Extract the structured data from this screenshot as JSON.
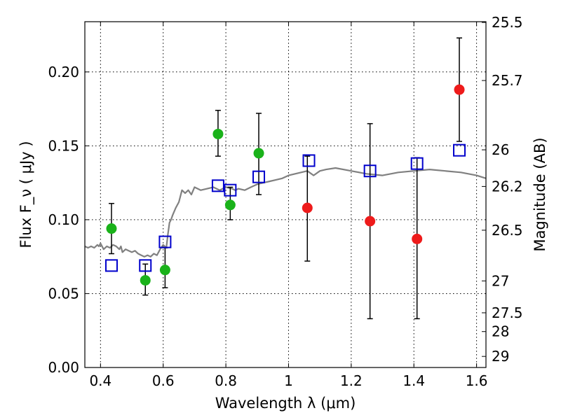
{
  "chart_data": {
    "type": "scatter",
    "title": "",
    "xlabel": "Wavelength  λ (μm)",
    "ylabel": "Flux  F_ν  ( μJy )",
    "ylabel_right": "Magnitude (AB)",
    "xlim": [
      0.35,
      1.63
    ],
    "ylim": [
      0.0,
      0.234
    ],
    "grid": true,
    "x_ticks": [
      0.4,
      0.6,
      0.8,
      1.0,
      1.2,
      1.4,
      1.6
    ],
    "x_tick_labels": [
      "0.4",
      "0.6",
      "0.8",
      "1",
      "1.2",
      "1.4",
      "1.6"
    ],
    "y_ticks": [
      0.0,
      0.05,
      0.1,
      0.15,
      0.2
    ],
    "y_tick_labels": [
      "0.00",
      "0.05",
      "0.10",
      "0.15",
      "0.20"
    ],
    "right_ticks": [
      {
        "label": "25.5",
        "flux": 0.2335
      },
      {
        "label": "25.7",
        "flux": 0.1942
      },
      {
        "label": "26",
        "flux": 0.1473
      },
      {
        "label": "26.2",
        "flux": 0.1225
      },
      {
        "label": "26.5",
        "flux": 0.0929
      },
      {
        "label": "27",
        "flux": 0.0586
      },
      {
        "label": "27.5",
        "flux": 0.037
      },
      {
        "label": "28",
        "flux": 0.0243
      },
      {
        "label": "29",
        "flux": 0.0075
      }
    ],
    "colors": {
      "model": "#808080",
      "detected": "#1ab21a",
      "nir": "#ee1b1b",
      "model_phot": "#0000cc",
      "errorbar": "#000000"
    },
    "series": [
      {
        "kind": "line",
        "color": "#808080",
        "x": [
          0.35,
          0.36,
          0.37,
          0.38,
          0.39,
          0.395,
          0.4,
          0.41,
          0.42,
          0.43,
          0.44,
          0.45,
          0.46,
          0.465,
          0.47,
          0.48,
          0.49,
          0.5,
          0.51,
          0.52,
          0.53,
          0.54,
          0.55,
          0.56,
          0.57,
          0.58,
          0.59,
          0.6,
          0.61,
          0.615,
          0.62,
          0.625,
          0.63,
          0.64,
          0.65,
          0.655,
          0.66,
          0.67,
          0.68,
          0.69,
          0.7,
          0.72,
          0.74,
          0.76,
          0.78,
          0.8,
          0.82,
          0.83,
          0.84,
          0.86,
          0.88,
          0.9,
          0.92,
          0.94,
          0.96,
          0.98,
          1.0,
          1.02,
          1.04,
          1.06,
          1.08,
          1.1,
          1.12,
          1.15,
          1.2,
          1.25,
          1.3,
          1.35,
          1.4,
          1.45,
          1.5,
          1.55,
          1.6,
          1.63
        ],
        "y": [
          0.082,
          0.081,
          0.082,
          0.081,
          0.083,
          0.082,
          0.084,
          0.08,
          0.082,
          0.081,
          0.083,
          0.082,
          0.08,
          0.082,
          0.078,
          0.08,
          0.079,
          0.078,
          0.079,
          0.077,
          0.076,
          0.075,
          0.076,
          0.075,
          0.077,
          0.076,
          0.08,
          0.083,
          0.081,
          0.09,
          0.098,
          0.1,
          0.103,
          0.108,
          0.112,
          0.116,
          0.12,
          0.118,
          0.12,
          0.117,
          0.122,
          0.12,
          0.121,
          0.122,
          0.12,
          0.122,
          0.121,
          0.12,
          0.121,
          0.12,
          0.122,
          0.124,
          0.125,
          0.126,
          0.127,
          0.128,
          0.13,
          0.131,
          0.132,
          0.133,
          0.13,
          0.133,
          0.134,
          0.135,
          0.133,
          0.131,
          0.13,
          0.132,
          0.133,
          0.134,
          0.133,
          0.132,
          0.13,
          0.128
        ]
      },
      {
        "kind": "points",
        "color": "#1ab21a",
        "x": [
          0.435,
          0.543,
          0.606,
          0.775,
          0.814,
          0.905
        ],
        "y": [
          0.094,
          0.059,
          0.066,
          0.158,
          0.11,
          0.145
        ],
        "yerr_low": [
          0.077,
          0.049,
          0.054,
          0.143,
          0.1,
          0.117
        ],
        "yerr_high": [
          0.111,
          0.07,
          0.081,
          0.174,
          0.122,
          0.172
        ]
      },
      {
        "kind": "points",
        "color": "#ee1b1b",
        "x": [
          1.06,
          1.26,
          1.41,
          1.545
        ],
        "y": [
          0.108,
          0.099,
          0.087,
          0.188
        ],
        "yerr_low": [
          0.072,
          0.033,
          0.033,
          0.153
        ],
        "yerr_high": [
          0.143,
          0.165,
          0.142,
          0.223
        ]
      },
      {
        "kind": "points",
        "color": "#0000cc",
        "x": [
          0.435,
          0.543,
          0.606,
          0.775,
          0.814,
          0.905,
          1.065,
          1.26,
          1.41,
          1.545
        ],
        "y": [
          0.069,
          0.069,
          0.085,
          0.123,
          0.12,
          0.129,
          0.14,
          0.133,
          0.138,
          0.147
        ]
      }
    ]
  }
}
